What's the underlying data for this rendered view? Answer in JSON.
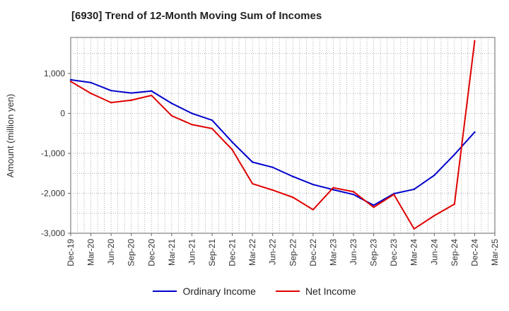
{
  "title": "[6930]  Trend of 12-Month Moving Sum of Incomes",
  "chart_data": {
    "type": "line",
    "title": "[6930]  Trend of 12-Month Moving Sum of Incomes",
    "xlabel": "",
    "ylabel": "Amount (million yen)",
    "ylim": [
      -3000,
      1900
    ],
    "yticks": [
      -3000,
      -2000,
      -1000,
      0,
      1000
    ],
    "ytick_labels": [
      "-3,000",
      "-2,000",
      "-1,000",
      "0",
      "1,000"
    ],
    "x": [
      "Dec-19",
      "Mar-20",
      "Jun-20",
      "Sep-20",
      "Dec-20",
      "Mar-21",
      "Jun-21",
      "Sep-21",
      "Dec-21",
      "Mar-22",
      "Jun-22",
      "Sep-22",
      "Dec-22",
      "Mar-23",
      "Jun-23",
      "Sep-23",
      "Dec-23",
      "Mar-24",
      "Jun-24",
      "Sep-24",
      "Dec-24",
      "Mar-25"
    ],
    "grid": true,
    "legend_position": "bottom",
    "series": [
      {
        "name": "Ordinary Income",
        "color": "#0000cc",
        "values": [
          840,
          770,
          570,
          510,
          560,
          250,
          0,
          -170,
          -720,
          -1220,
          -1350,
          -1580,
          -1780,
          -1910,
          -2030,
          -2300,
          -2010,
          -1900,
          -1550,
          -1030,
          -470,
          null
        ]
      },
      {
        "name": "Net Income",
        "color": "#e00000",
        "values": [
          800,
          500,
          270,
          330,
          450,
          -60,
          -280,
          -380,
          -910,
          -1760,
          -1920,
          -2100,
          -2410,
          -1860,
          -1960,
          -2350,
          -2030,
          -2890,
          -2560,
          -2270,
          1810,
          null
        ]
      }
    ]
  }
}
